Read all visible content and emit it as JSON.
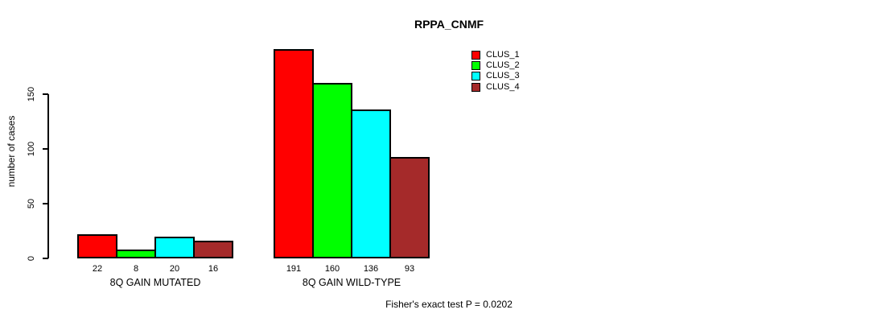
{
  "chart_data": {
    "type": "bar",
    "title": "RPPA_CNMF",
    "ylabel": "number of cases",
    "xlabel": "",
    "categories": [
      "8Q GAIN MUTATED",
      "8Q GAIN WILD-TYPE"
    ],
    "series": [
      {
        "name": "CLUS_1",
        "color": "#FF0000",
        "values": [
          22,
          191
        ]
      },
      {
        "name": "CLUS_2",
        "color": "#00FF00",
        "values": [
          8,
          160
        ]
      },
      {
        "name": "CLUS_3",
        "color": "#00FFFF",
        "values": [
          20,
          136
        ]
      },
      {
        "name": "CLUS_4",
        "color": "#A52A2A",
        "values": [
          16,
          93
        ]
      }
    ],
    "bar_value_labels": [
      [
        "22",
        "8",
        "20",
        "16"
      ],
      [
        "191",
        "160",
        "136",
        "93"
      ]
    ],
    "yticks": [
      0,
      50,
      100,
      150
    ],
    "ylim": [
      0,
      150
    ],
    "grid": false,
    "legend_position": "top-right",
    "annotation": "Fisher's exact test P = 0.0202"
  },
  "legend": {
    "items": [
      {
        "label": "CLUS_1",
        "color": "#FF0000"
      },
      {
        "label": "CLUS_2",
        "color": "#00FF00"
      },
      {
        "label": "CLUS_3",
        "color": "#00FFFF"
      },
      {
        "label": "CLUS_4",
        "color": "#A52A2A"
      }
    ]
  }
}
